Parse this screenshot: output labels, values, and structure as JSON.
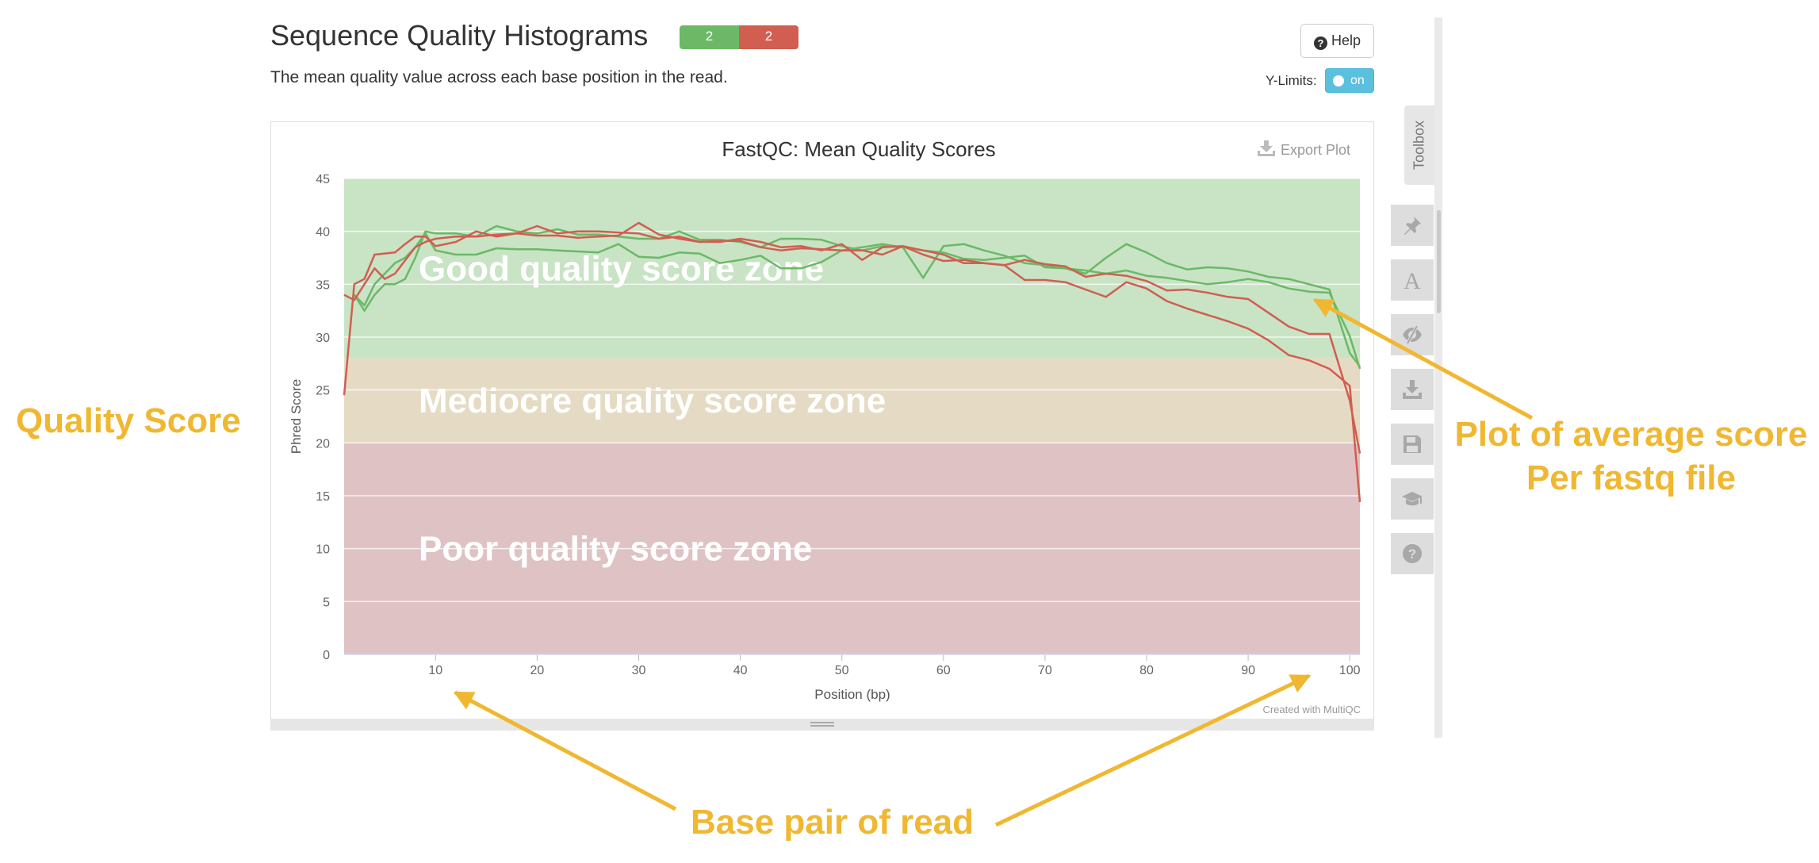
{
  "header": {
    "title": "Sequence Quality Histograms",
    "badges": [
      {
        "label": "2",
        "color": "#6cb867"
      },
      {
        "label": "2",
        "color": "#d25d51"
      }
    ],
    "description": "The mean quality value across each base position in the read.",
    "help_label": "Help",
    "ylimits_label": "Y-Limits:",
    "ylimits_toggle": "on"
  },
  "plot": {
    "export_label": "Export Plot",
    "credit": "Created with MultiQC"
  },
  "toolbox": {
    "label": "Toolbox",
    "buttons": [
      "pin-icon",
      "font-icon",
      "eye-slash-icon",
      "download-icon",
      "save-icon",
      "graduation-cap-icon",
      "question-icon"
    ]
  },
  "annotations": {
    "quality_score": "Quality Score",
    "plot_line1": "Plot of average score",
    "plot_line2": "Per fastq file",
    "base_pair": "Base pair of read"
  },
  "chart_data": {
    "type": "line",
    "title": "FastQC: Mean Quality Scores",
    "xlabel": "Position (bp)",
    "ylabel": "Phred Score",
    "xlim": [
      1,
      101
    ],
    "ylim": [
      0,
      45
    ],
    "xticks": [
      10,
      20,
      30,
      40,
      50,
      60,
      70,
      80,
      90,
      100
    ],
    "yticks": [
      0,
      5,
      10,
      15,
      20,
      25,
      30,
      35,
      40,
      45
    ],
    "grid": true,
    "legend": "none",
    "zones": [
      {
        "label": "Good quality score zone",
        "from": 28,
        "to": 45,
        "color": "#c8e4c5"
      },
      {
        "label": "Mediocre quality score zone",
        "from": 20,
        "to": 28,
        "color": "#e5dbc4"
      },
      {
        "label": "Poor quality score zone",
        "from": 0,
        "to": 20,
        "color": "#dfc2c3"
      }
    ],
    "series": [
      {
        "color": "#6cb867",
        "x": [
          2,
          3,
          4,
          6,
          7,
          8,
          9,
          10,
          12,
          14,
          16,
          18,
          20,
          22,
          24,
          26,
          28,
          30,
          32,
          34,
          36,
          38,
          40,
          42,
          44,
          46,
          48,
          50,
          52,
          54,
          56,
          58,
          60,
          62,
          64,
          66,
          68,
          70,
          72,
          74,
          76,
          78,
          80,
          82,
          84,
          86,
          88,
          90,
          92,
          94,
          96,
          98,
          100,
          101
        ],
        "y": [
          34,
          33,
          35,
          37,
          37.5,
          38.5,
          39.8,
          38.2,
          37.8,
          37.8,
          38.4,
          38.3,
          38.3,
          38.2,
          38.1,
          38,
          38.8,
          37.6,
          37.5,
          38,
          37.9,
          37,
          37.3,
          37.7,
          36.5,
          36.5,
          37.1,
          38.2,
          38.5,
          38.8,
          38.5,
          38.2,
          38,
          37.4,
          37.3,
          37.5,
          37.7,
          36.6,
          36.5,
          36.3,
          36,
          36.3,
          35.8,
          35.6,
          35.3,
          35,
          35.2,
          35.5,
          35.2,
          34.6,
          34.3,
          34.2,
          30.1,
          27
        ]
      },
      {
        "color": "#6cb867",
        "x": [
          2,
          3,
          4,
          5,
          6,
          7,
          8,
          9,
          10,
          12,
          14,
          16,
          18,
          20,
          22,
          24,
          26,
          28,
          30,
          32,
          34,
          36,
          38,
          40,
          42,
          44,
          46,
          48,
          50,
          52,
          54,
          56,
          58,
          60,
          62,
          64,
          66,
          68,
          70,
          72,
          74,
          76,
          78,
          80,
          82,
          84,
          86,
          88,
          90,
          92,
          94,
          96,
          98,
          100,
          101
        ],
        "y": [
          34,
          32.5,
          34,
          35,
          35,
          35.5,
          37.5,
          40,
          39.8,
          39.8,
          39.5,
          40.5,
          40,
          39.8,
          40.2,
          39.7,
          39.7,
          39.5,
          39.3,
          39.3,
          40,
          39.2,
          39.2,
          39,
          38.5,
          39.3,
          39.3,
          39.2,
          38.6,
          38.2,
          38.6,
          38.5,
          35.6,
          38.6,
          38.8,
          38.2,
          37.7,
          37,
          36.8,
          36.5,
          36,
          37.5,
          38.8,
          38,
          37,
          36.4,
          36.6,
          36.5,
          36.2,
          35.7,
          35.5,
          35,
          34.5,
          28.5,
          27.2
        ]
      },
      {
        "color": "#d25d51",
        "x": [
          1,
          2,
          3,
          4,
          6,
          7,
          8,
          9,
          10,
          12,
          14,
          16,
          18,
          20,
          22,
          24,
          26,
          28,
          30,
          32,
          34,
          36,
          38,
          40,
          42,
          44,
          46,
          48,
          50,
          52,
          54,
          56,
          58,
          60,
          62,
          64,
          66,
          68,
          70,
          72,
          74,
          76,
          78,
          80,
          82,
          84,
          86,
          88,
          90,
          92,
          94,
          96,
          98,
          100,
          101
        ],
        "y": [
          24.5,
          35,
          35.5,
          37.8,
          38,
          38.8,
          39.5,
          39.5,
          38.6,
          39,
          40,
          39.5,
          39.8,
          40.5,
          39.8,
          40,
          40,
          39.9,
          39.8,
          39.3,
          39.5,
          39,
          39,
          39.3,
          39,
          38.5,
          38.6,
          38.2,
          38.8,
          37.3,
          38.5,
          38.6,
          38.2,
          37.8,
          37,
          37,
          36.8,
          37.3,
          36.9,
          36.7,
          35.7,
          36,
          35.8,
          35.3,
          34.4,
          34.5,
          34.2,
          33.8,
          33.6,
          32.3,
          31,
          30.3,
          30.3,
          24,
          19
        ]
      },
      {
        "color": "#d25d51",
        "x": [
          1,
          2,
          3,
          4,
          5,
          6,
          8,
          9,
          10,
          12,
          14,
          16,
          18,
          20,
          22,
          24,
          26,
          28,
          30,
          32,
          34,
          36,
          38,
          40,
          42,
          44,
          46,
          48,
          50,
          52,
          54,
          56,
          58,
          60,
          62,
          64,
          66,
          68,
          70,
          72,
          74,
          76,
          78,
          80,
          82,
          84,
          86,
          88,
          90,
          92,
          94,
          96,
          98,
          100,
          101
        ],
        "y": [
          34,
          33.5,
          35,
          36.5,
          35.5,
          36,
          38.5,
          39,
          39.3,
          39.5,
          39.5,
          39.7,
          39.8,
          39.6,
          39.6,
          39.4,
          39.5,
          39.6,
          40.8,
          39.7,
          39.3,
          39,
          39.1,
          39.1,
          38.5,
          38.2,
          38.4,
          38.3,
          38.2,
          38.2,
          37.8,
          38.6,
          37.8,
          37.2,
          37.3,
          37,
          36.8,
          35.4,
          35.4,
          35.2,
          34.5,
          33.8,
          35.2,
          34.6,
          33.4,
          32.7,
          32.1,
          31.5,
          30.8,
          29.7,
          28.3,
          27.8,
          27,
          25.4,
          14.4
        ]
      }
    ]
  }
}
